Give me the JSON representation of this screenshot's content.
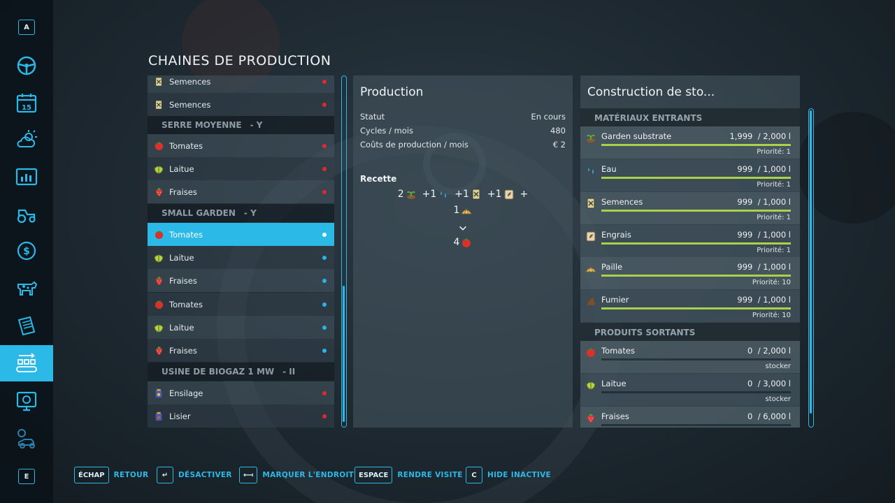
{
  "nav": {
    "top_key": "A",
    "bottom_key": "E",
    "items": [
      {
        "icon": "steering-wheel-icon"
      },
      {
        "icon": "calendar-icon",
        "label": "15"
      },
      {
        "icon": "weather-icon"
      },
      {
        "icon": "statistics-icon"
      },
      {
        "icon": "tractor-icon"
      },
      {
        "icon": "finance-icon"
      },
      {
        "icon": "cow-icon"
      },
      {
        "icon": "contracts-icon"
      },
      {
        "icon": "production-icon",
        "active": true
      },
      {
        "icon": "help-icon"
      },
      {
        "icon": "settings-icon"
      }
    ]
  },
  "page_title": "CHAINES DE PRODUCTION",
  "list": {
    "rows": [
      {
        "type": "item",
        "icon": "seeds-icon",
        "label": "Semences",
        "status": "red"
      },
      {
        "type": "item",
        "icon": "seeds-icon",
        "label": "Semences",
        "status": "red"
      },
      {
        "type": "header",
        "label": "SERRE MOYENNE",
        "suffix": "- Y"
      },
      {
        "type": "item",
        "icon": "tomato-icon",
        "label": "Tomates",
        "status": "red"
      },
      {
        "type": "item",
        "icon": "lettuce-icon",
        "label": "Laitue",
        "status": "red"
      },
      {
        "type": "item",
        "icon": "strawberry-icon",
        "label": "Fraises",
        "status": "red"
      },
      {
        "type": "header",
        "label": "SMALL GARDEN",
        "suffix": "- Y"
      },
      {
        "type": "item",
        "icon": "tomato-icon",
        "label": "Tomates",
        "status": "white",
        "selected": true
      },
      {
        "type": "item",
        "icon": "lettuce-icon",
        "label": "Laitue",
        "status": "blue"
      },
      {
        "type": "item",
        "icon": "strawberry-icon",
        "label": "Fraises",
        "status": "blue"
      },
      {
        "type": "item",
        "icon": "tomato-icon",
        "label": "Tomates",
        "status": "blue"
      },
      {
        "type": "item",
        "icon": "lettuce-icon",
        "label": "Laitue",
        "status": "blue"
      },
      {
        "type": "item",
        "icon": "strawberry-icon",
        "label": "Fraises",
        "status": "blue"
      },
      {
        "type": "header",
        "label": "USINE DE BIOGAZ 1 MW",
        "suffix": "- II"
      },
      {
        "type": "item",
        "icon": "silage-icon",
        "label": "Ensilage",
        "status": "red"
      },
      {
        "type": "item",
        "icon": "slurry-icon",
        "label": "Lisier",
        "status": "red"
      }
    ]
  },
  "production": {
    "title": "Production",
    "status_label": "Statut",
    "status_value": "En cours",
    "cycles_label": "Cycles / mois",
    "cycles_value": "480",
    "cost_label": "Coûts de production / mois",
    "cost_value": "€ 2",
    "recipe_title": "Recette",
    "recipe_line1": [
      {
        "amount": "2",
        "icon": "garden-substrate-icon"
      },
      {
        "amount": "+1",
        "icon": "water-icon"
      },
      {
        "amount": "+1",
        "icon": "seeds-icon"
      },
      {
        "amount": "+1",
        "icon": "fertilizer-icon"
      },
      {
        "amount": "+",
        "icon": ""
      }
    ],
    "recipe_line2": {
      "amount": "1",
      "icon": "straw-icon"
    },
    "recipe_output": {
      "amount": "4",
      "icon": "tomato-icon"
    }
  },
  "storage": {
    "title": "Construction de sto...",
    "inputs_header": "MATÉRIAUX ENTRANTS",
    "outputs_header": "PRODUITS SORTANTS",
    "inputs": [
      {
        "icon": "garden-substrate-icon",
        "name": "Garden substrate",
        "amount": "1,999",
        "capacity": "/ 2,000 l",
        "fill": 0.9995,
        "note": "Priorité: 1"
      },
      {
        "icon": "water-icon",
        "name": "Eau",
        "amount": "999",
        "capacity": "/ 1,000 l",
        "fill": 0.999,
        "note": "Priorité: 1"
      },
      {
        "icon": "seeds-icon",
        "name": "Semences",
        "amount": "999",
        "capacity": "/ 1,000 l",
        "fill": 0.999,
        "note": "Priorité: 1"
      },
      {
        "icon": "fertilizer-icon",
        "name": "Engrais",
        "amount": "999",
        "capacity": "/ 1,000 l",
        "fill": 0.999,
        "note": "Priorité: 1"
      },
      {
        "icon": "straw-icon",
        "name": "Paille",
        "amount": "999",
        "capacity": "/ 1,000 l",
        "fill": 0.999,
        "note": "Priorité: 10"
      },
      {
        "icon": "manure-icon",
        "name": "Fumier",
        "amount": "999",
        "capacity": "/ 1,000 l",
        "fill": 0.999,
        "note": "Priorité: 10"
      }
    ],
    "outputs": [
      {
        "icon": "tomato-icon",
        "name": "Tomates",
        "amount": "0",
        "capacity": "/ 2,000 l",
        "fill": 0.0,
        "note": "stocker"
      },
      {
        "icon": "lettuce-icon",
        "name": "Laitue",
        "amount": "0",
        "capacity": "/ 3,000 l",
        "fill": 0.0,
        "note": "stocker"
      },
      {
        "icon": "strawberry-icon",
        "name": "Fraises",
        "amount": "0",
        "capacity": "/ 6,000 l",
        "fill": 0.0,
        "note": ""
      }
    ]
  },
  "footer": [
    {
      "key": "ÉCHAP",
      "label": "RETOUR"
    },
    {
      "key": "↵",
      "label": "DÉSACTIVER"
    },
    {
      "key": "⟻",
      "label": "MARQUER L'ENDROIT"
    },
    {
      "key": "ESPACE",
      "label": "RENDRE VISITE"
    },
    {
      "key": "C",
      "label": "HIDE INACTIVE"
    }
  ],
  "colors": {
    "accent": "#2bb9e8",
    "status_red": "#e4272f",
    "fill_green": "#a9d14a"
  }
}
